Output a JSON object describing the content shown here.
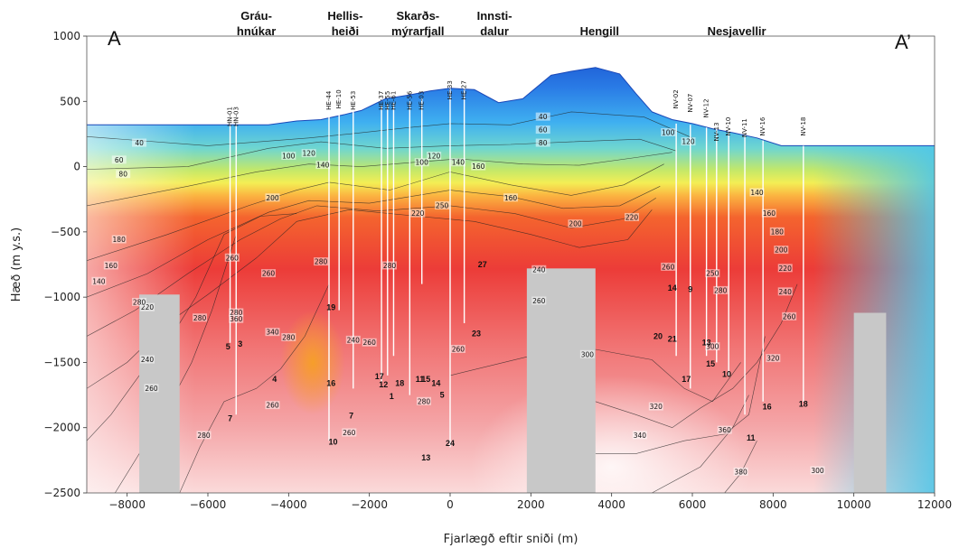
{
  "chart_data": {
    "type": "heatmap",
    "title": "",
    "xlabel": "Fjarlægð eftir sniði (m)",
    "ylabel": "Hæð (m y.s.)",
    "xlim": [
      -9000,
      12000
    ],
    "ylim": [
      -2500,
      1000
    ],
    "x_ticks": [
      -8000,
      -6000,
      -4000,
      -2000,
      0,
      2000,
      4000,
      6000,
      8000,
      10000,
      12000
    ],
    "y_ticks": [
      1000,
      500,
      0,
      -500,
      -1000,
      -1500,
      -2000,
      -2500
    ],
    "x_tick_labels": [
      "−8000",
      "−6000",
      "−4000",
      "−2000",
      "0",
      "2000",
      "4000",
      "6000",
      "8000",
      "10000",
      "12000"
    ],
    "y_tick_labels": [
      "1000",
      "500",
      "0",
      "−500",
      "−1000",
      "−1500",
      "−2000",
      "−2500"
    ],
    "endpoints": {
      "left": "A",
      "right": "A’"
    },
    "regions": [
      {
        "lines": [
          "Gráu-",
          "hnúkar"
        ],
        "x": -4800
      },
      {
        "lines": [
          "Hellis-",
          "heiði"
        ],
        "x": -2600
      },
      {
        "lines": [
          "Skarðs-",
          "mýrarfjall"
        ],
        "x": -800
      },
      {
        "lines": [
          "Innsti-",
          "dalur"
        ],
        "x": 1100
      },
      {
        "lines": [
          "Hengill"
        ],
        "x": 3700
      },
      {
        "lines": [
          "Nesjavellir"
        ],
        "x": 7100
      }
    ],
    "topography": {
      "x": [
        -9000,
        -4500,
        -3800,
        -3200,
        -2600,
        -2200,
        -1600,
        -1000,
        -500,
        0,
        600,
        1200,
        1800,
        2500,
        3000,
        3600,
        4200,
        4600,
        5000,
        5500,
        6000,
        6500,
        7000,
        7600,
        8200,
        9000,
        10000,
        12000
      ],
      "z": [
        320,
        320,
        350,
        360,
        400,
        430,
        520,
        550,
        580,
        600,
        590,
        490,
        520,
        700,
        730,
        760,
        710,
        560,
        420,
        360,
        330,
        290,
        260,
        220,
        160,
        160,
        160,
        160
      ]
    },
    "temperature_colorscale": [
      {
        "t": 0,
        "color": "#1f5fd6"
      },
      {
        "t": 40,
        "color": "#2f86e8"
      },
      {
        "t": 80,
        "color": "#3fb0f0"
      },
      {
        "t": 120,
        "color": "#58d2e6"
      },
      {
        "t": 150,
        "color": "#79dcb0"
      },
      {
        "t": 180,
        "color": "#c3e86a"
      },
      {
        "t": 200,
        "color": "#f3ee55"
      },
      {
        "t": 220,
        "color": "#fbb441"
      },
      {
        "t": 240,
        "color": "#f4642e"
      },
      {
        "t": 260,
        "color": "#ec3c38"
      },
      {
        "t": 280,
        "color": "#f17474"
      },
      {
        "t": 300,
        "color": "#f4a4a6"
      },
      {
        "t": 330,
        "color": "#f8d0d2"
      },
      {
        "t": 360,
        "color": "#fff0f0"
      }
    ],
    "no_data_color": "#c8c8c8",
    "no_data_areas": [
      {
        "x_range": [
          -7700,
          -6700
        ],
        "z_range": [
          -2500,
          -980
        ]
      },
      {
        "x_range": [
          1900,
          3600
        ],
        "z_range": [
          -2500,
          -780
        ]
      },
      {
        "x_range": [
          10000,
          10800
        ],
        "z_range": [
          -2500,
          -1120
        ]
      }
    ],
    "isotherms": [
      {
        "label": "40",
        "x": [
          -9000,
          -6000,
          -3500,
          -2500,
          -1000,
          0,
          1500,
          3000,
          4800,
          6000
        ],
        "z": [
          230,
          160,
          220,
          250,
          300,
          330,
          320,
          420,
          380,
          220
        ]
      },
      {
        "label": "80",
        "x": [
          -9000,
          -6500,
          -4500,
          -3200,
          -1600,
          0,
          1500,
          3000,
          4700,
          5600
        ],
        "z": [
          -20,
          0,
          140,
          190,
          140,
          160,
          170,
          190,
          210,
          120
        ]
      },
      {
        "label": "120",
        "x": [
          -9000,
          -6500,
          -4800,
          -3500,
          -2200,
          -1000,
          200,
          1800,
          3200,
          4600,
          5500
        ],
        "z": [
          -300,
          -150,
          -40,
          20,
          0,
          30,
          60,
          20,
          10,
          70,
          110
        ]
      },
      {
        "label": "160",
        "x": [
          -9000,
          -7000,
          -5000,
          -3800,
          -3000,
          -1500,
          0,
          1500,
          3000,
          4300,
          5300
        ],
        "z": [
          -720,
          -520,
          -300,
          -180,
          -120,
          -180,
          -40,
          -140,
          -220,
          -140,
          20
        ]
      },
      {
        "label": "180",
        "x": [
          -9000,
          -7500,
          -6000,
          -4500,
          -3500,
          -2000,
          0,
          1500,
          2800,
          4200,
          5200
        ],
        "z": [
          -1000,
          -820,
          -560,
          -350,
          -260,
          -280,
          -180,
          -230,
          -320,
          -300,
          -150
        ]
      },
      {
        "label": "200",
        "x": [
          -9000,
          -7800,
          -6500,
          -5200,
          -4200,
          -3300,
          -1800,
          0,
          1600,
          3000,
          4300,
          5100
        ],
        "z": [
          -1300,
          -1100,
          -820,
          -560,
          -400,
          -300,
          -340,
          -300,
          -360,
          -470,
          -400,
          -240
        ]
      },
      {
        "label": "220",
        "x": [
          -9000,
          -8000,
          -7000,
          -6000,
          -4800,
          -3800,
          -2500,
          -800,
          600,
          2000,
          3200,
          4400,
          5000
        ],
        "z": [
          -1700,
          -1500,
          -1200,
          -980,
          -700,
          -420,
          -330,
          -380,
          -420,
          -520,
          -620,
          -560,
          -330
        ]
      },
      {
        "label": "240",
        "x": [
          -9000,
          -8400,
          -7700,
          -7000,
          -6300,
          -5600,
          -4700,
          -3800
        ],
        "z": [
          -2100,
          -1900,
          -1600,
          -1350,
          -1000,
          -520,
          -380,
          -360
        ]
      },
      {
        "label": "260",
        "x": [
          -8300,
          -7600,
          -7000,
          -6400,
          -5900,
          -5300
        ],
        "z": [
          -2500,
          -2150,
          -1850,
          -1500,
          -1100,
          -520
        ]
      },
      {
        "label": "280",
        "x": [
          -6700,
          -6200,
          -5600,
          -4800,
          -4200,
          -3600,
          -3000
        ],
        "z": [
          -2500,
          -2150,
          -1800,
          -1700,
          -1550,
          -1300,
          -900
        ]
      },
      {
        "label": "300",
        "x": [
          0,
          2000,
          3600,
          5000,
          5800,
          6500,
          7200
        ],
        "z": [
          -1600,
          -1450,
          -1400,
          -1480,
          -1700,
          -1800,
          -1500
        ]
      },
      {
        "label": "320",
        "x": [
          3600,
          4600,
          5500,
          6200,
          7000,
          7600,
          8200,
          8600
        ],
        "z": [
          -1800,
          -1900,
          -2000,
          -1850,
          -1700,
          -1500,
          -1200,
          -900
        ]
      },
      {
        "label": "340",
        "x": [
          3600,
          4600,
          5800,
          6800,
          7400,
          7800
        ],
        "z": [
          -2200,
          -2200,
          -2100,
          -2050,
          -1900,
          -1300
        ]
      },
      {
        "label": "360",
        "x": [
          5000,
          6200,
          7000,
          7400
        ],
        "z": [
          -2500,
          -2300,
          -2000,
          -1750
        ]
      },
      {
        "label": "380",
        "x": [
          6800,
          7200,
          7600
        ],
        "z": [
          -2500,
          -2350,
          -2100
        ]
      }
    ],
    "wells": [
      {
        "name": "HN-03",
        "x": -5300,
        "top": 320,
        "bottom": -1900,
        "label_top": 640
      },
      {
        "name": "HN-01",
        "x": -5450,
        "top": 320,
        "bottom": -1350,
        "label_top": 640
      },
      {
        "name": "HE-44",
        "x": -3000,
        "top": 380,
        "bottom": -2100,
        "label_top": 760
      },
      {
        "name": "HE-10",
        "x": -2750,
        "top": 400,
        "bottom": -1100,
        "label_top": 770
      },
      {
        "name": "HE-53",
        "x": -2400,
        "top": 420,
        "bottom": -1700,
        "label_top": 760
      },
      {
        "name": "HE-37",
        "x": -1700,
        "top": 470,
        "bottom": -1650,
        "label_top": 760
      },
      {
        "name": "HE-55",
        "x": -1550,
        "top": 480,
        "bottom": -1600,
        "label_top": 760
      },
      {
        "name": "HE-61",
        "x": -1400,
        "top": 490,
        "bottom": -1450,
        "label_top": 760
      },
      {
        "name": "HE-56",
        "x": -1000,
        "top": 500,
        "bottom": -1750,
        "label_top": 760
      },
      {
        "name": "HE-03",
        "x": -700,
        "top": 520,
        "bottom": -900,
        "label_top": 760
      },
      {
        "name": "HE-33",
        "x": 0,
        "top": 600,
        "bottom": -2150,
        "label_top": 840
      },
      {
        "name": "HE-27",
        "x": 350,
        "top": 600,
        "bottom": -1200,
        "label_top": 840
      },
      {
        "name": "NV-02",
        "x": 5600,
        "top": 330,
        "bottom": -1450,
        "label_top": 770
      },
      {
        "name": "NV-07",
        "x": 5950,
        "top": 320,
        "bottom": -1700,
        "label_top": 740
      },
      {
        "name": "NV-12",
        "x": 6350,
        "top": 300,
        "bottom": -1450,
        "label_top": 700
      },
      {
        "name": "NV-13",
        "x": 6600,
        "top": 290,
        "bottom": -1500,
        "label_top": 520
      },
      {
        "name": "NV-10",
        "x": 6900,
        "top": 270,
        "bottom": -1600,
        "label_top": 560
      },
      {
        "name": "NV-11",
        "x": 7300,
        "top": 240,
        "bottom": -1900,
        "label_top": 550
      },
      {
        "name": "NV-16",
        "x": 7750,
        "top": 200,
        "bottom": -1800,
        "label_top": 560
      },
      {
        "name": "NV-18",
        "x": 8750,
        "top": 160,
        "bottom": -1800,
        "label_top": 560
      }
    ],
    "well_numbers": [
      {
        "label": "5",
        "x": -5500,
        "z": -1400
      },
      {
        "label": "3",
        "x": -5200,
        "z": -1380
      },
      {
        "label": "7",
        "x": -5450,
        "z": -1950
      },
      {
        "label": "4",
        "x": -4350,
        "z": -1650
      },
      {
        "label": "19",
        "x": -2950,
        "z": -1100
      },
      {
        "label": "16",
        "x": -2950,
        "z": -1680
      },
      {
        "label": "7",
        "x": -2450,
        "z": -1930
      },
      {
        "label": "10",
        "x": -2900,
        "z": -2130
      },
      {
        "label": "17",
        "x": -1750,
        "z": -1630
      },
      {
        "label": "12",
        "x": -1650,
        "z": -1690
      },
      {
        "label": "18",
        "x": -1250,
        "z": -1680
      },
      {
        "label": "1",
        "x": -1450,
        "z": -1780
      },
      {
        "label": "11",
        "x": -750,
        "z": -1650
      },
      {
        "label": "15",
        "x": -600,
        "z": -1650
      },
      {
        "label": "14",
        "x": -350,
        "z": -1680
      },
      {
        "label": "5",
        "x": -200,
        "z": -1770
      },
      {
        "label": "13",
        "x": -600,
        "z": -2250
      },
      {
        "label": "24",
        "x": 0,
        "z": -2140
      },
      {
        "label": "27",
        "x": 800,
        "z": -770
      },
      {
        "label": "23",
        "x": 650,
        "z": -1300
      },
      {
        "label": "14",
        "x": 5500,
        "z": -950
      },
      {
        "label": "9",
        "x": 5950,
        "z": -960
      },
      {
        "label": "20",
        "x": 5150,
        "z": -1320
      },
      {
        "label": "21",
        "x": 5500,
        "z": -1340
      },
      {
        "label": "13",
        "x": 6350,
        "z": -1370
      },
      {
        "label": "15",
        "x": 6450,
        "z": -1530
      },
      {
        "label": "17",
        "x": 5850,
        "z": -1650
      },
      {
        "label": "10",
        "x": 6850,
        "z": -1610
      },
      {
        "label": "16",
        "x": 7850,
        "z": -1860
      },
      {
        "label": "11",
        "x": 7450,
        "z": -2100
      },
      {
        "label": "18",
        "x": 8750,
        "z": -1840
      }
    ],
    "isotherm_labels": [
      {
        "label": "40",
        "x": -7700,
        "z": 180
      },
      {
        "label": "60",
        "x": -8200,
        "z": 50
      },
      {
        "label": "80",
        "x": -8100,
        "z": -60
      },
      {
        "label": "100",
        "x": -4000,
        "z": 80
      },
      {
        "label": "120",
        "x": -3500,
        "z": 100
      },
      {
        "label": "140",
        "x": -3150,
        "z": 10
      },
      {
        "label": "40",
        "x": 2300,
        "z": 380
      },
      {
        "label": "60",
        "x": 2300,
        "z": 280
      },
      {
        "label": "80",
        "x": 2300,
        "z": 180
      },
      {
        "label": "100",
        "x": -700,
        "z": 30
      },
      {
        "label": "120",
        "x": -400,
        "z": 80
      },
      {
        "label": "140",
        "x": 200,
        "z": 30
      },
      {
        "label": "160",
        "x": 700,
        "z": 0
      },
      {
        "label": "160",
        "x": 1500,
        "z": -240
      },
      {
        "label": "180",
        "x": -8200,
        "z": -560
      },
      {
        "label": "160",
        "x": -8400,
        "z": -760
      },
      {
        "label": "140",
        "x": -8700,
        "z": -880
      },
      {
        "label": "200",
        "x": -4400,
        "z": -240
      },
      {
        "label": "220",
        "x": -800,
        "z": -360
      },
      {
        "label": "200",
        "x": 3100,
        "z": -440
      },
      {
        "label": "220",
        "x": 4500,
        "z": -390
      },
      {
        "label": "220",
        "x": -7500,
        "z": -1080
      },
      {
        "label": "260",
        "x": -4500,
        "z": -820
      },
      {
        "label": "280",
        "x": -6200,
        "z": -1160
      },
      {
        "label": "240",
        "x": -7500,
        "z": -1480
      },
      {
        "label": "260",
        "x": -7400,
        "z": -1700
      },
      {
        "label": "280",
        "x": -3200,
        "z": -730
      },
      {
        "label": "280",
        "x": -1500,
        "z": -760
      },
      {
        "label": "240",
        "x": 2200,
        "z": -790
      },
      {
        "label": "260",
        "x": 2200,
        "z": -1030
      },
      {
        "label": "300",
        "x": 3400,
        "z": -1440
      },
      {
        "label": "320",
        "x": 5100,
        "z": -1840
      },
      {
        "label": "340",
        "x": 4700,
        "z": -2060
      },
      {
        "label": "360",
        "x": 6800,
        "z": -2020
      },
      {
        "label": "380",
        "x": 7200,
        "z": -2340
      },
      {
        "label": "300",
        "x": 9100,
        "z": -2330
      },
      {
        "label": "320",
        "x": 8000,
        "z": -1470
      },
      {
        "label": "260",
        "x": 5400,
        "z": -770
      },
      {
        "label": "100",
        "x": 5400,
        "z": 260
      },
      {
        "label": "120",
        "x": 5900,
        "z": 190
      },
      {
        "label": "140",
        "x": 7600,
        "z": -200
      },
      {
        "label": "160",
        "x": 7900,
        "z": -360
      },
      {
        "label": "180",
        "x": 8100,
        "z": -500
      },
      {
        "label": "200",
        "x": 8200,
        "z": -640
      },
      {
        "label": "220",
        "x": 8300,
        "z": -780
      },
      {
        "label": "240",
        "x": 8300,
        "z": -960
      },
      {
        "label": "260",
        "x": 8400,
        "z": -1150
      },
      {
        "label": "300",
        "x": 6500,
        "z": -1380
      },
      {
        "label": "280",
        "x": 6700,
        "z": -950
      },
      {
        "label": "250",
        "x": 6500,
        "z": -820
      },
      {
        "label": "280",
        "x": -4000,
        "z": -1310
      },
      {
        "label": "340",
        "x": -4400,
        "z": -1270
      },
      {
        "label": "260",
        "x": -4400,
        "z": -1830
      },
      {
        "label": "240",
        "x": -2400,
        "z": -1330
      },
      {
        "label": "260",
        "x": -2000,
        "z": -1350
      },
      {
        "label": "280",
        "x": -650,
        "z": -1800
      },
      {
        "label": "260",
        "x": -2500,
        "z": -2040
      },
      {
        "label": "280",
        "x": -6100,
        "z": -2060
      },
      {
        "label": "260",
        "x": -5400,
        "z": -700
      },
      {
        "label": "260",
        "x": 200,
        "z": -1400
      },
      {
        "label": "250",
        "x": -200,
        "z": -300
      },
      {
        "label": "280",
        "x": -7700,
        "z": -1040
      },
      {
        "label": "280",
        "x": -5300,
        "z": -1120
      },
      {
        "label": "360",
        "x": -5300,
        "z": -1170
      }
    ]
  }
}
